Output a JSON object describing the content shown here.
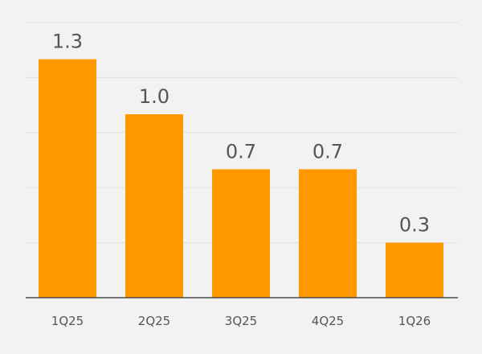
{
  "chart_data": {
    "type": "bar",
    "title": "",
    "xlabel": "",
    "ylabel": "",
    "categories": [
      "1Q25",
      "2Q25",
      "3Q25",
      "4Q25",
      "1Q26"
    ],
    "values": [
      1.3,
      1.0,
      0.7,
      0.7,
      0.3
    ],
    "value_labels": [
      "1.3",
      "1.0",
      "0.7",
      "0.7",
      "0.3"
    ],
    "ylim": [
      0,
      1.5
    ],
    "grid": true,
    "legend": "none",
    "colors": {
      "bar": "#FF9900",
      "background": "#F2F2F2",
      "grid": "#E1E1E1",
      "axis": "#4A4A4A",
      "text": "#555555"
    }
  }
}
